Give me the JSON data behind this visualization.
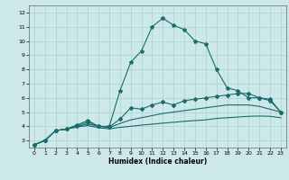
{
  "title": "",
  "xlabel": "Humidex (Indice chaleur)",
  "ylabel": "",
  "bg_color": "#cde8e8",
  "line_color": "#1a6b6b",
  "grid_color": "#aad0d0",
  "xlim": [
    -0.5,
    23.5
  ],
  "ylim": [
    2.5,
    12.5
  ],
  "xticks": [
    0,
    1,
    2,
    3,
    4,
    5,
    6,
    7,
    8,
    9,
    10,
    11,
    12,
    13,
    14,
    15,
    16,
    17,
    18,
    19,
    20,
    21,
    22,
    23
  ],
  "yticks": [
    3,
    4,
    5,
    6,
    7,
    8,
    9,
    10,
    11,
    12
  ],
  "series": [
    {
      "x": [
        0,
        1,
        2,
        3,
        4,
        5,
        6,
        7,
        8,
        9,
        10,
        11,
        12,
        13,
        14,
        15,
        16,
        17,
        18,
        19,
        20,
        21,
        22,
        23
      ],
      "y": [
        2.7,
        3.0,
        3.7,
        3.8,
        4.1,
        4.4,
        4.0,
        4.0,
        6.5,
        8.5,
        9.3,
        11.0,
        11.6,
        11.1,
        10.8,
        10.0,
        9.8,
        8.0,
        6.7,
        6.5,
        6.0,
        6.0,
        5.8,
        5.0
      ],
      "marker": "*",
      "linestyle": "-",
      "lw": 0.8,
      "ms": 3
    },
    {
      "x": [
        0,
        1,
        2,
        3,
        4,
        5,
        6,
        7,
        8,
        9,
        10,
        11,
        12,
        13,
        14,
        15,
        16,
        17,
        18,
        19,
        20,
        21,
        22,
        23
      ],
      "y": [
        2.7,
        3.0,
        3.7,
        3.8,
        4.0,
        4.3,
        4.0,
        3.95,
        4.5,
        5.3,
        5.2,
        5.5,
        5.7,
        5.5,
        5.8,
        5.9,
        6.0,
        6.1,
        6.2,
        6.3,
        6.3,
        6.0,
        5.9,
        5.0
      ],
      "marker": "D",
      "linestyle": "-",
      "lw": 0.8,
      "ms": 2
    },
    {
      "x": [
        0,
        1,
        2,
        3,
        4,
        5,
        6,
        7,
        8,
        9,
        10,
        11,
        12,
        13,
        14,
        15,
        16,
        17,
        18,
        19,
        20,
        21,
        22,
        23
      ],
      "y": [
        2.7,
        3.0,
        3.7,
        3.8,
        4.0,
        4.15,
        4.0,
        3.9,
        4.2,
        4.45,
        4.6,
        4.75,
        4.9,
        5.0,
        5.1,
        5.2,
        5.3,
        5.4,
        5.5,
        5.5,
        5.5,
        5.4,
        5.2,
        5.0
      ],
      "marker": null,
      "linestyle": "-",
      "lw": 0.8,
      "ms": 0
    },
    {
      "x": [
        0,
        1,
        2,
        3,
        4,
        5,
        6,
        7,
        8,
        9,
        10,
        11,
        12,
        13,
        14,
        15,
        16,
        17,
        18,
        19,
        20,
        21,
        22,
        23
      ],
      "y": [
        2.7,
        3.0,
        3.7,
        3.8,
        3.95,
        4.05,
        3.9,
        3.82,
        3.92,
        4.0,
        4.08,
        4.15,
        4.22,
        4.28,
        4.35,
        4.4,
        4.45,
        4.55,
        4.6,
        4.65,
        4.7,
        4.72,
        4.7,
        4.6
      ],
      "marker": null,
      "linestyle": "-",
      "lw": 0.8,
      "ms": 0
    }
  ]
}
